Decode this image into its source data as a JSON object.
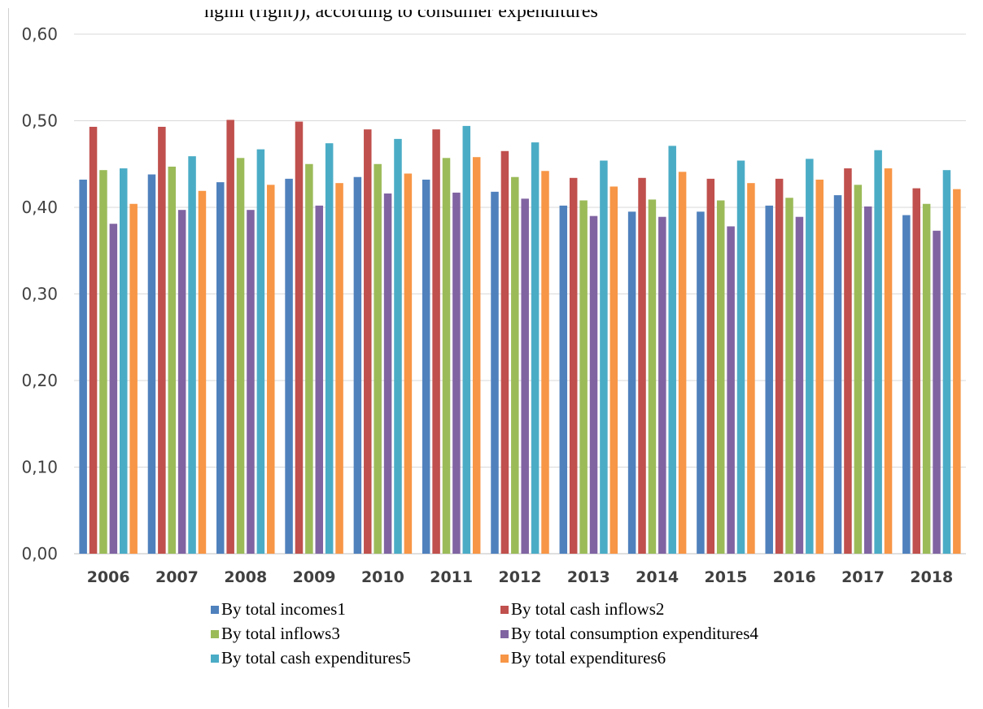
{
  "caption_fragment": "ngini (right)), according to consumer expenditures",
  "chart_data": {
    "type": "bar",
    "categories": [
      "2006",
      "2007",
      "2008",
      "2009",
      "2010",
      "2011",
      "2012",
      "2013",
      "2014",
      "2015",
      "2016",
      "2017",
      "2018"
    ],
    "ylim": [
      0,
      0.6
    ],
    "yticks": [
      "0,00",
      "0,10",
      "0,20",
      "0,30",
      "0,40",
      "0,50",
      "0,60"
    ],
    "grid": true,
    "legend_position": "bottom",
    "series": [
      {
        "name": "By total incomes1",
        "color": "#4f81bd",
        "values": [
          0.432,
          0.438,
          0.429,
          0.433,
          0.435,
          0.432,
          0.418,
          0.402,
          0.395,
          0.395,
          0.402,
          0.414,
          0.391
        ]
      },
      {
        "name": "By total cash inflows2",
        "color": "#c0504d",
        "values": [
          0.493,
          0.493,
          0.501,
          0.499,
          0.49,
          0.49,
          0.465,
          0.434,
          0.434,
          0.433,
          0.433,
          0.445,
          0.422
        ]
      },
      {
        "name": "By total inflows3",
        "color": "#9bbb59",
        "values": [
          0.443,
          0.447,
          0.457,
          0.45,
          0.45,
          0.457,
          0.435,
          0.408,
          0.409,
          0.408,
          0.411,
          0.426,
          0.404
        ]
      },
      {
        "name": "By total consumption expenditures4",
        "color": "#8064a2",
        "values": [
          0.381,
          0.397,
          0.397,
          0.402,
          0.416,
          0.417,
          0.41,
          0.39,
          0.389,
          0.378,
          0.389,
          0.401,
          0.373
        ]
      },
      {
        "name": "By total cash expenditures5",
        "color": "#4bacc6",
        "values": [
          0.445,
          0.459,
          0.467,
          0.474,
          0.479,
          0.494,
          0.475,
          0.454,
          0.471,
          0.454,
          0.456,
          0.466,
          0.443
        ]
      },
      {
        "name": "By total expenditures6",
        "color": "#f79646",
        "values": [
          0.404,
          0.419,
          0.426,
          0.428,
          0.439,
          0.458,
          0.442,
          0.424,
          0.441,
          0.428,
          0.432,
          0.445,
          0.421
        ]
      }
    ]
  }
}
